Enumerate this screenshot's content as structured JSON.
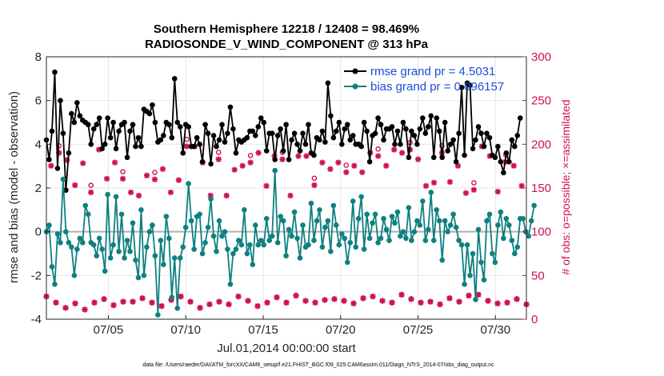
{
  "chart_data": {
    "type": "line",
    "title": "Southern Hemisphere 12218 / 12408 = 98.469%",
    "subtitle": "RADIOSONDE_V_WIND_COMPONENT @ 313 hPa",
    "xlabel": "Jul.01,2014 00:00:00 start",
    "ylabel": "rmse and bias (model - observation)",
    "ylabel_right": "# of obs: o=possible; ×=assimilated",
    "footer": "data file: /Users/raeder/DAI/ATM_forcXX/CAM6_setup/f.e21.FHIST_BGC.f09_025.CAM6assim.011/Diags_NTrS_2014-07/obs_diag_output.nc",
    "xlim": [
      1,
      32
    ],
    "ylim": [
      -4,
      8
    ],
    "ylim_right": [
      0,
      300
    ],
    "x_ticks": [
      5,
      10,
      15,
      20,
      25,
      30
    ],
    "x_tick_labels": [
      "07/05",
      "07/10",
      "07/15",
      "07/20",
      "07/25",
      "07/30"
    ],
    "y_ticks": [
      -4,
      -2,
      0,
      2,
      4,
      6,
      8
    ],
    "y_tick_labels": [
      "-4",
      "-2",
      "0",
      "2",
      "4",
      "6",
      "8"
    ],
    "y_ticks_right": [
      0,
      50,
      100,
      150,
      200,
      250,
      300
    ],
    "y_tick_labels_right": [
      "0",
      "50",
      "100",
      "150",
      "200",
      "250",
      "300"
    ],
    "grid": true,
    "legend_position": "top-right",
    "series": [
      {
        "name": "rmse grand pr = 4.5031",
        "color": "#000000",
        "values": [
          4.2,
          3.3,
          4.6,
          7.3,
          2.9,
          6.0,
          4.5,
          1.9,
          3.6,
          5.4,
          5.0,
          5.9,
          5.3,
          5.1,
          5.0,
          4.9,
          4.0,
          4.7,
          4.9,
          5.2,
          3.8,
          4.0,
          5.2,
          4.3,
          5.0,
          3.8,
          4.6,
          4.9,
          5.0,
          3.4,
          4.6,
          4.9,
          3.9,
          4.3,
          3.9,
          5.6,
          5.5,
          5.4,
          5.8,
          5.0,
          4.1,
          4.2,
          4.4,
          5.0,
          4.9,
          4.3,
          7.0,
          5.0,
          4.8,
          3.6,
          4.9,
          4.8,
          3.9,
          3.9,
          4.3,
          4.0,
          3.2,
          4.9,
          4.5,
          3.1,
          4.4,
          3.9,
          4.2,
          4.9,
          4.1,
          4.5,
          5.7,
          4.7,
          3.6,
          4.2,
          4.1,
          4.2,
          4.3,
          4.6,
          4.6,
          4.4,
          4.8,
          5.2,
          5.0,
          3.7,
          4.5,
          4.5,
          3.3,
          4.4,
          4.7,
          3.7,
          4.9,
          3.3,
          4.2,
          4.5,
          4.0,
          3.7,
          4.5,
          4.0,
          4.9,
          3.6,
          3.5,
          4.3,
          4.2,
          4.6,
          4.1,
          6.8,
          5.3,
          4.3,
          4.6,
          5.0,
          4.0,
          4.7,
          4.9,
          4.2,
          4.4,
          4.0,
          4.0,
          3.9,
          5.0,
          4.6,
          3.2,
          4.4,
          4.5,
          5.2,
          4.9,
          4.2,
          4.7,
          4.7,
          4.8,
          4.0,
          4.6,
          4.0,
          5.0,
          4.7,
          3.4,
          4.6,
          4.4,
          4.0,
          4.7,
          5.2,
          4.5,
          4.8,
          5.3,
          3.4,
          5.2,
          4.6,
          3.4,
          5.0,
          3.7,
          4.0,
          4.2,
          3.2,
          4.5,
          6.6,
          3.5,
          6.8,
          6.7,
          3.8,
          4.2,
          4.8,
          4.5,
          3.9,
          4.5,
          4.3,
          3.5,
          3.4,
          3.9,
          3.2,
          2.7,
          3.6,
          3.2,
          4.2,
          3.9,
          4.4,
          5.2
        ],
        "x_start": 1.0,
        "x_step": 0.18
      },
      {
        "name": "bias grand pr = 0.096157",
        "color": "#0f8080",
        "values": [
          0.0,
          0.3,
          -1.6,
          -2.4,
          -0.1,
          -0.5,
          2.4,
          0.0,
          -0.5,
          -0.7,
          -2.0,
          -0.8,
          -0.3,
          -0.5,
          1.2,
          0.8,
          -0.5,
          -0.6,
          -1.1,
          -0.3,
          -0.8,
          -1.8,
          1.7,
          -1.2,
          -0.6,
          1.6,
          -0.9,
          0.8,
          -1.2,
          -0.4,
          -0.9,
          0.4,
          -1.3,
          -2.1,
          1.0,
          -2.0,
          -0.7,
          0.0,
          0.3,
          -1.1,
          -3.8,
          -0.4,
          -1.5,
          0.7,
          -0.3,
          -3.0,
          -1.2,
          -3.5,
          -1.2,
          -0.7,
          0.2,
          2.2,
          0.5,
          -0.8,
          0.7,
          0.8,
          -1.0,
          -0.5,
          0.2,
          1.5,
          -0.2,
          -0.9,
          0.5,
          -0.2,
          0.0,
          -0.8,
          -2.4,
          -1.0,
          -0.8,
          -0.4,
          -0.6,
          1.0,
          -1.0,
          -0.6,
          -1.5,
          0.3,
          -0.6,
          -0.4,
          -0.6,
          0.6,
          -0.4,
          -0.2,
          2.8,
          -0.5,
          0.7,
          0.5,
          -1.1,
          0.1,
          -0.2,
          0.9,
          -0.3,
          -1.2,
          0.3,
          -0.7,
          -0.6,
          1.3,
          -0.4,
          0.5,
          1.0,
          -0.7,
          0.2,
          0.5,
          -0.9,
          1.2,
          0.3,
          -0.6,
          -0.1,
          -0.3,
          -1.4,
          -0.5,
          1.4,
          -0.7,
          0.6,
          1.6,
          -0.8,
          0.8,
          -0.3,
          0.4,
          0.8,
          -0.5,
          -0.3,
          0.6,
          0.1,
          -0.4,
          0.7,
          0.4,
          0.9,
          -0.2,
          0.0,
          -0.3,
          1.1,
          -0.4,
          0.0,
          0.5,
          0.3,
          1.4,
          -0.4,
          0.1,
          1.8,
          -0.4,
          1.0,
          0.5,
          -1.3,
          0.5,
          0.0,
          0.3,
          0.8,
          0.2,
          -0.4,
          -0.6,
          -2.4,
          -0.6,
          -2.0,
          -1.0,
          -3.1,
          0.1,
          -1.4,
          -2.2,
          0.5,
          0.8,
          -1.0,
          -1.4,
          0.3,
          0.9,
          -0.3,
          0.6,
          0.3,
          -0.4,
          -1.0,
          -0.7,
          0.6,
          0.6,
          0.0,
          -0.2,
          0.5,
          1.2
        ],
        "x_start": 1.0,
        "x_step": 0.18
      }
    ],
    "obs_assimilated": [
      26,
      19,
      13,
      18,
      11,
      19,
      23,
      16,
      20,
      20,
      24,
      19,
      15,
      22,
      26,
      20,
      13,
      17,
      20,
      17,
      26,
      21,
      15,
      19,
      25,
      19,
      27,
      21,
      19,
      22,
      23,
      21,
      18,
      24,
      26,
      21,
      19,
      28,
      23,
      19,
      20,
      17,
      24,
      20,
      27,
      28,
      21,
      18,
      19,
      23,
      17
    ],
    "obs_possible_note": "possible obs (o) approximately 165-200, assimilated upper band (x) approximately 140-200"
  }
}
